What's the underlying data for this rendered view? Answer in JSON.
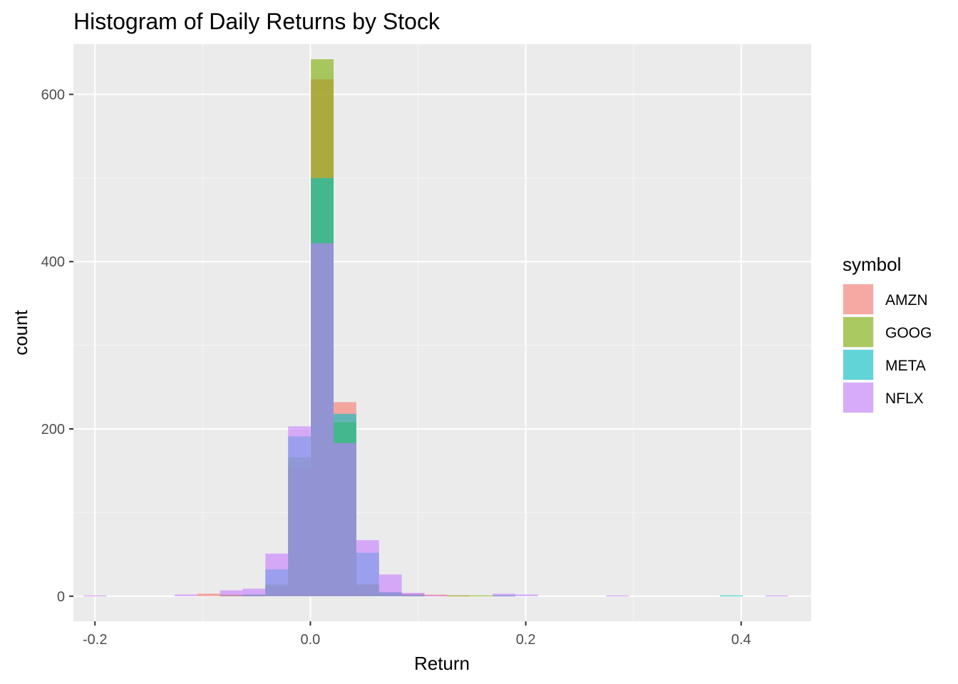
{
  "chart_data": {
    "type": "histogram",
    "title": "Histogram of Daily Returns by Stock",
    "xlabel": "Return",
    "ylabel": "count",
    "xlim": [
      -0.22,
      0.465
    ],
    "ylim": [
      -30,
      660
    ],
    "x_ticks": [
      -0.2,
      0.0,
      0.2,
      0.4
    ],
    "x_tick_labels": [
      "-0.2",
      "0.0",
      "0.2",
      "0.4"
    ],
    "y_ticks": [
      0,
      200,
      400,
      600
    ],
    "y_tick_labels": [
      "0",
      "200",
      "400",
      "600"
    ],
    "grid": true,
    "bin_width": 0.0211,
    "bin_centers": [
      -0.2,
      -0.1789,
      -0.1578,
      -0.1367,
      -0.1156,
      -0.0945,
      -0.0734,
      -0.0523,
      -0.0312,
      -0.0101,
      0.011,
      0.0321,
      0.0532,
      0.0743,
      0.0954,
      0.1165,
      0.1376,
      0.1587,
      0.1798,
      0.2009,
      0.222,
      0.2431,
      0.2642,
      0.2853,
      0.3064,
      0.3275,
      0.3486,
      0.3697,
      0.3908,
      0.4119,
      0.433
    ],
    "legend": {
      "title": "symbol",
      "position": "right"
    },
    "series": [
      {
        "name": "AMZN",
        "color": "#F8766D",
        "values": [
          0,
          0,
          0,
          0,
          0,
          3,
          2,
          1,
          12,
          153,
          618,
          232,
          14,
          5,
          3,
          2,
          1,
          0,
          1,
          0,
          0,
          0,
          0,
          0,
          0,
          0,
          0,
          0,
          0,
          0,
          0
        ]
      },
      {
        "name": "GOOG",
        "color": "#7CAE00",
        "values": [
          0,
          0,
          0,
          0,
          0,
          0,
          1,
          2,
          14,
          166,
          642,
          208,
          14,
          3,
          1,
          0,
          1,
          1,
          0,
          0,
          0,
          0,
          0,
          0,
          0,
          0,
          0,
          0,
          0,
          0,
          0
        ]
      },
      {
        "name": "META",
        "color": "#00BFC4",
        "values": [
          0,
          0,
          0,
          0,
          0,
          0,
          0,
          2,
          32,
          191,
          500,
          218,
          52,
          5,
          2,
          0,
          0,
          0,
          1,
          0,
          0,
          0,
          0,
          0,
          0,
          0,
          0,
          0,
          1,
          0,
          0
        ]
      },
      {
        "name": "NFLX",
        "color": "#C77CFF",
        "values": [
          1,
          0,
          0,
          0,
          2,
          0,
          7,
          9,
          51,
          203,
          422,
          183,
          67,
          26,
          4,
          1,
          0,
          0,
          3,
          2,
          0,
          0,
          0,
          1,
          0,
          0,
          0,
          0,
          0,
          0,
          1
        ]
      }
    ]
  }
}
